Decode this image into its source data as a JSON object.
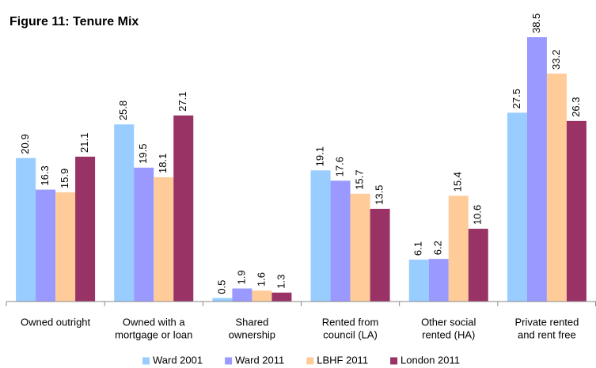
{
  "chart_data": {
    "type": "bar",
    "title": "Figure 11: Tenure Mix",
    "categories": [
      [
        "Owned outright"
      ],
      [
        "Owned with a",
        "mortgage or loan"
      ],
      [
        "Shared",
        "ownership"
      ],
      [
        "Rented from",
        "council (LA)"
      ],
      [
        "Other social",
        "rented (HA)"
      ],
      [
        "Private rented",
        "and rent free"
      ]
    ],
    "series": [
      {
        "name": "Ward 2001",
        "color": "#99ccff",
        "values": [
          20.9,
          25.8,
          0.5,
          19.1,
          6.1,
          27.5
        ]
      },
      {
        "name": "Ward 2011",
        "color": "#9999ff",
        "values": [
          16.3,
          19.5,
          1.9,
          17.6,
          6.2,
          38.5
        ]
      },
      {
        "name": "LBHF 2011",
        "color": "#ffcc99",
        "values": [
          15.9,
          18.1,
          1.6,
          15.7,
          15.4,
          33.2
        ]
      },
      {
        "name": "London 2011",
        "color": "#993366",
        "values": [
          21.1,
          27.1,
          1.3,
          13.5,
          10.6,
          26.3
        ]
      }
    ],
    "ylim": [
      0,
      40
    ],
    "legend": "bottom"
  }
}
